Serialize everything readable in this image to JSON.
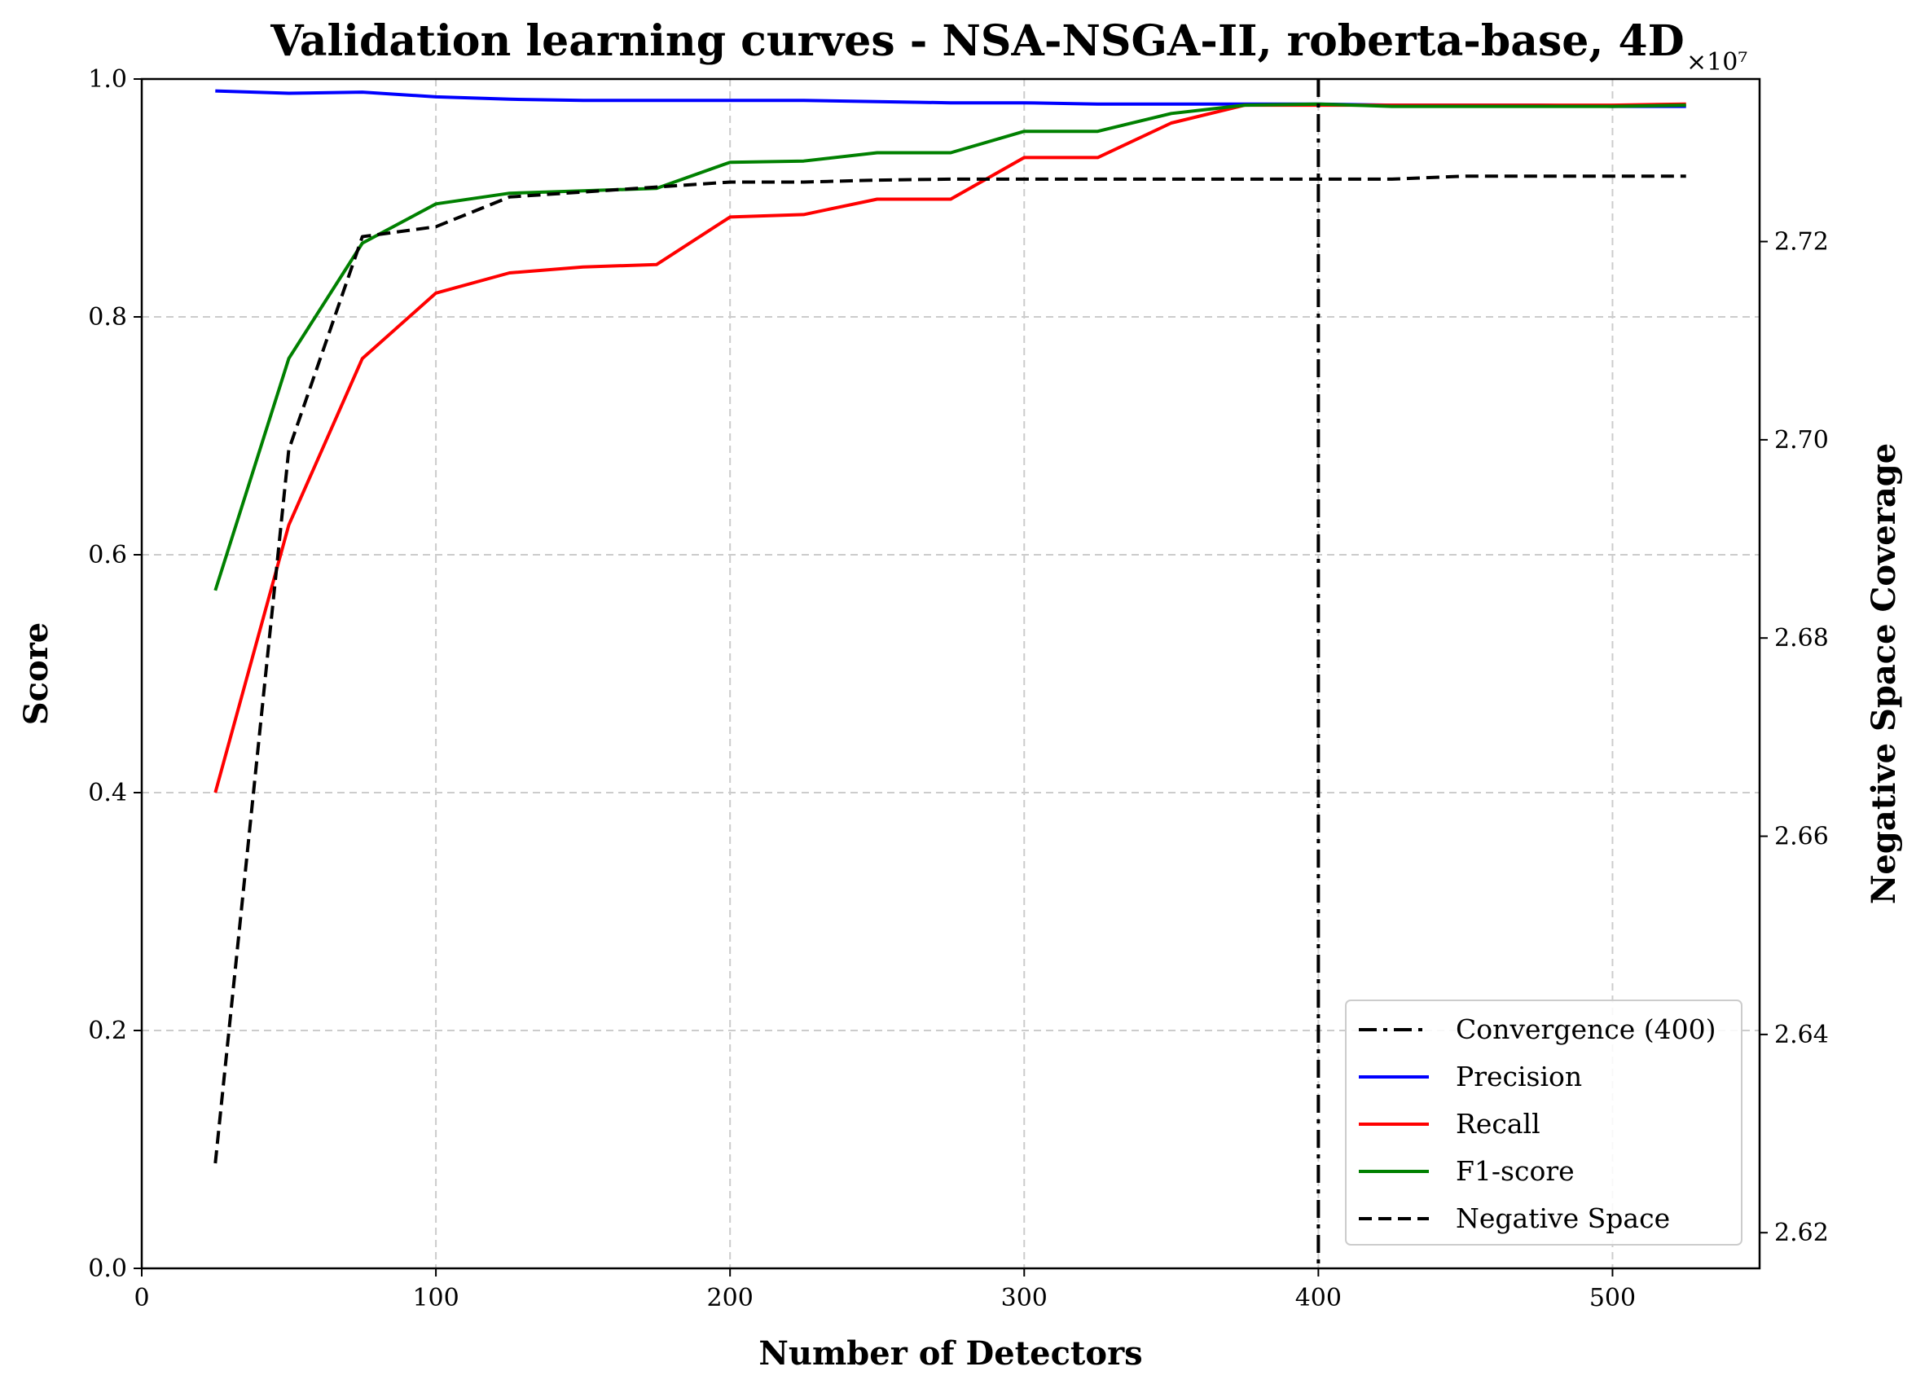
{
  "chart_data": {
    "type": "line",
    "title": "Validation learning curves - NSA-NSGA-II, roberta-base, 4D",
    "xlabel": "Number of Detectors",
    "ylabel": "Score",
    "y2label": "Negative Space Coverage",
    "y2_multiplier": "×10⁷",
    "xlim": [
      0,
      550
    ],
    "ylim": [
      0,
      1.0
    ],
    "y2lim": [
      2.6164,
      2.7364
    ],
    "x_ticks": [
      0,
      100,
      200,
      300,
      400,
      500
    ],
    "y_ticks": [
      0.0,
      0.2,
      0.4,
      0.6,
      0.8,
      1.0
    ],
    "y2_ticks": [
      2.62,
      2.64,
      2.66,
      2.68,
      2.7,
      2.72
    ],
    "grid": true,
    "legend_position": "lower-right",
    "x": [
      25,
      50,
      75,
      100,
      125,
      150,
      175,
      200,
      225,
      250,
      275,
      300,
      325,
      350,
      375,
      400,
      425,
      450,
      475,
      500,
      525
    ],
    "series": [
      {
        "name": "Precision",
        "color": "#0000ff",
        "style": "solid",
        "axis": "left",
        "values": [
          0.99,
          0.988,
          0.989,
          0.985,
          0.983,
          0.982,
          0.982,
          0.982,
          0.982,
          0.981,
          0.98,
          0.98,
          0.979,
          0.979,
          0.979,
          0.979,
          0.978,
          0.978,
          0.978,
          0.977,
          0.977
        ]
      },
      {
        "name": "Recall",
        "color": "#ff0000",
        "style": "solid",
        "axis": "left",
        "values": [
          0.4,
          0.625,
          0.765,
          0.82,
          0.837,
          0.842,
          0.844,
          0.884,
          0.886,
          0.899,
          0.899,
          0.934,
          0.934,
          0.963,
          0.978,
          0.978,
          0.978,
          0.978,
          0.978,
          0.978,
          0.979
        ]
      },
      {
        "name": "F1-score",
        "color": "#008000",
        "style": "solid",
        "axis": "left",
        "values": [
          0.57,
          0.765,
          0.862,
          0.895,
          0.904,
          0.906,
          0.908,
          0.93,
          0.931,
          0.938,
          0.938,
          0.956,
          0.956,
          0.971,
          0.978,
          0.979,
          0.977,
          0.977,
          0.977,
          0.977,
          0.978
        ]
      },
      {
        "name": "Negative Space",
        "color": "#000000",
        "style": "dashed",
        "axis": "right",
        "values": [
          2.627,
          2.699,
          2.7205,
          2.7215,
          2.7245,
          2.725,
          2.7255,
          2.726,
          2.726,
          2.7262,
          2.7263,
          2.7263,
          2.7263,
          2.7263,
          2.7263,
          2.7263,
          2.7263,
          2.7266,
          2.7266,
          2.7266,
          2.7266
        ]
      }
    ],
    "convergence": {
      "name": "Convergence (400)",
      "x": 400,
      "color": "#000000",
      "style": "dashdot"
    }
  }
}
